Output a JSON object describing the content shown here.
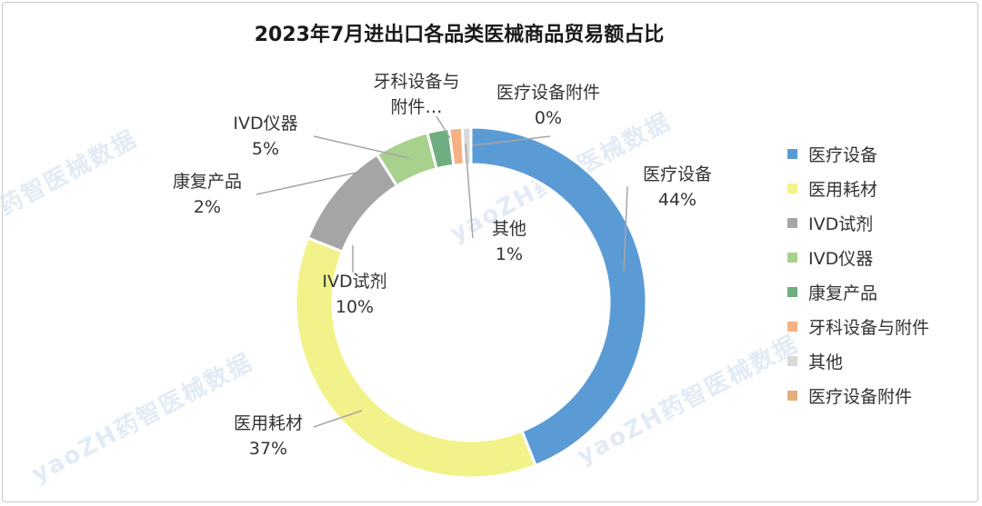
{
  "chart_data": {
    "type": "pie",
    "title": "2023年7月进出口各品类医械商品贸易额占比",
    "series": [
      {
        "name": "医疗设备",
        "percent": 44,
        "label": "44%",
        "color": "#5b9bd5"
      },
      {
        "name": "医用耗材",
        "percent": 37,
        "label": "37%",
        "color": "#f2f28a"
      },
      {
        "name": "IVD试剂",
        "percent": 10,
        "label": "10%",
        "color": "#a5a5a5"
      },
      {
        "name": "IVD仪器",
        "percent": 5,
        "label": "5%",
        "color": "#a9d18e"
      },
      {
        "name": "康复产品",
        "percent": 2,
        "label": "2%",
        "color": "#70ad80"
      },
      {
        "name": "牙科设备与附件",
        "display_name": "牙科设备与\n附件…",
        "percent": 1.2,
        "label": "",
        "color": "#f4b183"
      },
      {
        "name": "其他",
        "percent": 0.8,
        "label": "1%",
        "color": "#d9d9d9"
      },
      {
        "name": "医疗设备附件",
        "percent": 0,
        "label": "0%",
        "color": "#e2b07a"
      }
    ],
    "legend_position": "right"
  },
  "watermarks": [
    "yaoZH药智医械数据",
    "yaoZH药智医械数据",
    "yaoZH药智医械数据",
    "药智医械数据"
  ]
}
